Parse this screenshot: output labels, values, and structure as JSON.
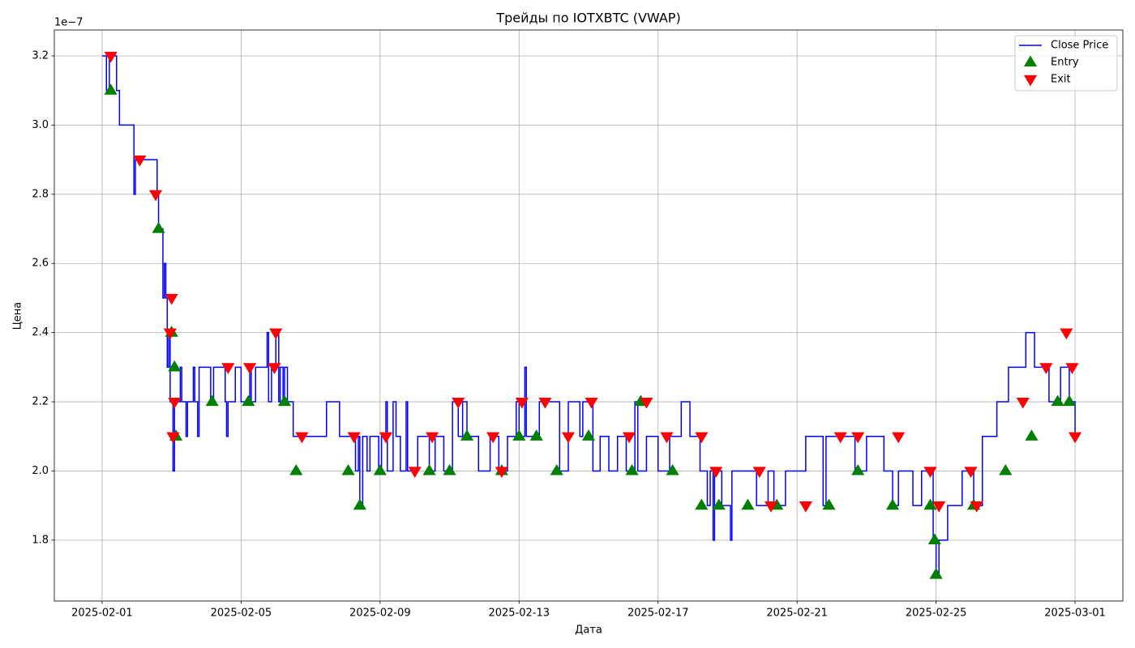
{
  "chart_data": {
    "type": "line",
    "title": "Трейды по IOTXBTC (VWAP)",
    "x_label": "Дата",
    "y_label": "Цена",
    "y_offset_text": "1e−7",
    "xlim": [
      "2025-01-30 15:00",
      "2025-03-02 09:00"
    ],
    "xticks": [
      "2025-02-01",
      "2025-02-05",
      "2025-02-09",
      "2025-02-13",
      "2025-02-17",
      "2025-02-21",
      "2025-02-25",
      "2025-03-01"
    ],
    "ylim": [
      1.624,
      3.275
    ],
    "yticks": [
      1.8,
      {
        "value": 2,
        "label": "2.0"
      },
      2.2,
      2.4,
      2.6,
      2.8,
      {
        "value": 3,
        "label": "3.0"
      },
      3.2
    ],
    "grid": true,
    "legend": "upper right",
    "series": [
      {
        "name": "Close Price",
        "marker": "step-line",
        "color": "#0000ff",
        "x": [
          "2025-02-01 00:00",
          "2025-02-01 03:00",
          "2025-02-01 05:00",
          "2025-02-01 10:00",
          "2025-02-01 12:00",
          "2025-02-01 22:00",
          "2025-02-01 23:00",
          "2025-02-02 14:00",
          "2025-02-02 15:00",
          "2025-02-02 18:00",
          "2025-02-02 19:00",
          "2025-02-02 20:00",
          "2025-02-02 21:00",
          "2025-02-02 22:00",
          "2025-02-02 23:00",
          "2025-02-03 01:00",
          "2025-02-03 02:00",
          "2025-02-03 06:00",
          "2025-02-03 07:00",
          "2025-02-03 10:00",
          "2025-02-03 11:00",
          "2025-02-03 15:00",
          "2025-02-03 16:00",
          "2025-02-03 18:00",
          "2025-02-03 19:00",
          "2025-02-04 03:00",
          "2025-02-04 05:00",
          "2025-02-04 13:00",
          "2025-02-04 14:00",
          "2025-02-04 15:00",
          "2025-02-04 20:00",
          "2025-02-05 00:00",
          "2025-02-05 06:00",
          "2025-02-05 07:00",
          "2025-02-05 10:00",
          "2025-02-05 18:00",
          "2025-02-05 19:00",
          "2025-02-05 21:00",
          "2025-02-06 00:00",
          "2025-02-06 02:00",
          "2025-02-06 03:00",
          "2025-02-06 05:00",
          "2025-02-06 06:00",
          "2025-02-06 08:00",
          "2025-02-06 12:00",
          "2025-02-07 11:00",
          "2025-02-07 20:00",
          "2025-02-08 07:00",
          "2025-02-08 09:00",
          "2025-02-08 10:00",
          "2025-02-08 12:00",
          "2025-02-08 15:00",
          "2025-02-08 17:00",
          "2025-02-08 23:00",
          "2025-02-09 01:00",
          "2025-02-09 04:00",
          "2025-02-09 05:00",
          "2025-02-09 09:00",
          "2025-02-09 11:00",
          "2025-02-09 14:00",
          "2025-02-09 18:00",
          "2025-02-09 19:00",
          "2025-02-10 02:00",
          "2025-02-10 10:00",
          "2025-02-10 14:00",
          "2025-02-10 20:00",
          "2025-02-11 02:00",
          "2025-02-11 06:00",
          "2025-02-11 09:00",
          "2025-02-11 12:00",
          "2025-02-11 20:00",
          "2025-02-12 04:00",
          "2025-02-12 10:00",
          "2025-02-12 16:00",
          "2025-02-12 22:00",
          "2025-02-13 00:00",
          "2025-02-13 04:00",
          "2025-02-13 05:00",
          "2025-02-13 14:00",
          "2025-02-14 04:00",
          "2025-02-14 10:00",
          "2025-02-14 18:00",
          "2025-02-14 20:00",
          "2025-02-15 03:00",
          "2025-02-15 08:00",
          "2025-02-15 14:00",
          "2025-02-15 20:00",
          "2025-02-16 02:00",
          "2025-02-16 08:00",
          "2025-02-16 10:00",
          "2025-02-16 16:00",
          "2025-02-17 00:00",
          "2025-02-17 08:00",
          "2025-02-17 16:00",
          "2025-02-17 22:00",
          "2025-02-18 05:00",
          "2025-02-18 10:00",
          "2025-02-18 12:00",
          "2025-02-18 14:00",
          "2025-02-18 15:00",
          "2025-02-18 20:00",
          "2025-02-19 02:00",
          "2025-02-19 03:00",
          "2025-02-19 20:00",
          "2025-02-20 04:00",
          "2025-02-20 08:00",
          "2025-02-20 16:00",
          "2025-02-21 06:00",
          "2025-02-21 18:00",
          "2025-02-21 20:00",
          "2025-02-22 16:00",
          "2025-02-23 00:00",
          "2025-02-23 12:00",
          "2025-02-23 18:00",
          "2025-02-23 22:00",
          "2025-02-24 08:00",
          "2025-02-24 14:00",
          "2025-02-24 22:00",
          "2025-02-25 00:00",
          "2025-02-25 02:00",
          "2025-02-25 08:00",
          "2025-02-25 18:00",
          "2025-02-26 02:00",
          "2025-02-26 08:00",
          "2025-02-26 18:00",
          "2025-02-27 02:00",
          "2025-02-27 14:00",
          "2025-02-27 20:00",
          "2025-02-28 06:00",
          "2025-02-28 14:00",
          "2025-02-28 20:00",
          "2025-03-01 00:00"
        ],
        "values": [
          3.2,
          3.1,
          3.2,
          3.1,
          3.0,
          2.8,
          2.9,
          2.8,
          2.7,
          2.5,
          2.6,
          2.5,
          2.3,
          2.4,
          2.2,
          2.0,
          2.2,
          2.3,
          2.2,
          2.1,
          2.2,
          2.3,
          2.2,
          2.1,
          2.3,
          2.2,
          2.3,
          2.2,
          2.1,
          2.2,
          2.3,
          2.2,
          2.3,
          2.2,
          2.3,
          2.4,
          2.2,
          2.3,
          2.4,
          2.2,
          2.3,
          2.2,
          2.3,
          2.2,
          2.1,
          2.2,
          2.1,
          2.0,
          2.1,
          1.9,
          2.1,
          2.0,
          2.1,
          2.0,
          2.1,
          2.2,
          2.0,
          2.2,
          2.1,
          2.0,
          2.2,
          2.0,
          2.1,
          2.0,
          2.1,
          2.0,
          2.2,
          2.1,
          2.2,
          2.1,
          2.0,
          2.1,
          2.0,
          2.1,
          2.2,
          2.1,
          2.3,
          2.1,
          2.2,
          2.0,
          2.2,
          2.1,
          2.2,
          2.0,
          2.1,
          2.0,
          2.1,
          2.0,
          2.2,
          2.0,
          2.1,
          2.0,
          2.1,
          2.2,
          2.1,
          2.0,
          1.9,
          2.0,
          1.8,
          2.0,
          1.9,
          1.8,
          2.0,
          1.9,
          2.0,
          1.9,
          2.0,
          2.1,
          1.9,
          2.1,
          2.0,
          2.1,
          2.0,
          1.9,
          2.0,
          1.9,
          2.0,
          1.8,
          1.7,
          1.8,
          1.9,
          2.0,
          1.9,
          2.1,
          2.2,
          2.3,
          2.4,
          2.3,
          2.2,
          2.3,
          2.2,
          2.1
        ]
      },
      {
        "name": "Entry",
        "marker": "triangle-up",
        "color": "#008000",
        "x": [
          "2025-02-01 06:00",
          "2025-02-02 15:00",
          "2025-02-03 00:00",
          "2025-02-03 02:00",
          "2025-02-03 03:00",
          "2025-02-04 04:00",
          "2025-02-05 05:00",
          "2025-02-06 06:00",
          "2025-02-06 14:00",
          "2025-02-08 02:00",
          "2025-02-08 10:00",
          "2025-02-09 00:00",
          "2025-02-10 10:00",
          "2025-02-11 00:00",
          "2025-02-11 12:00",
          "2025-02-12 12:00",
          "2025-02-13 00:00",
          "2025-02-13 12:00",
          "2025-02-14 02:00",
          "2025-02-15 00:00",
          "2025-02-16 06:00",
          "2025-02-16 12:00",
          "2025-02-17 10:00",
          "2025-02-18 06:00",
          "2025-02-18 18:00",
          "2025-02-19 14:00",
          "2025-02-20 10:00",
          "2025-02-21 22:00",
          "2025-02-22 18:00",
          "2025-02-23 18:00",
          "2025-02-24 20:00",
          "2025-02-24 23:00",
          "2025-02-25 00:00",
          "2025-02-26 02:00",
          "2025-02-27 00:00",
          "2025-02-27 18:00",
          "2025-02-28 12:00",
          "2025-02-28 20:00"
        ],
        "values": [
          3.1,
          2.7,
          2.4,
          2.3,
          2.1,
          2.2,
          2.2,
          2.2,
          2.0,
          2.0,
          1.9,
          2.0,
          2.0,
          2.0,
          2.1,
          2.0,
          2.1,
          2.1,
          2.0,
          2.1,
          2.0,
          2.2,
          2.0,
          1.9,
          1.9,
          1.9,
          1.9,
          1.9,
          2.0,
          1.9,
          1.9,
          1.8,
          1.7,
          1.9,
          2.0,
          2.1,
          2.2,
          2.2
        ]
      },
      {
        "name": "Exit",
        "marker": "triangle-down",
        "color": "#ff0000",
        "x": [
          "2025-02-01 06:00",
          "2025-02-02 02:00",
          "2025-02-02 13:00",
          "2025-02-03 00:00",
          "2025-02-02 23:00",
          "2025-02-03 02:00",
          "2025-02-03 01:00",
          "2025-02-04 15:00",
          "2025-02-05 06:00",
          "2025-02-06 00:00",
          "2025-02-05 23:00",
          "2025-02-06 18:00",
          "2025-02-08 06:00",
          "2025-02-09 04:00",
          "2025-02-10 00:00",
          "2025-02-10 12:00",
          "2025-02-11 06:00",
          "2025-02-12 06:00",
          "2025-02-12 12:00",
          "2025-02-13 02:00",
          "2025-02-13 18:00",
          "2025-02-14 10:00",
          "2025-02-15 02:00",
          "2025-02-16 04:00",
          "2025-02-16 16:00",
          "2025-02-17 06:00",
          "2025-02-18 06:00",
          "2025-02-18 16:00",
          "2025-02-19 22:00",
          "2025-02-20 06:00",
          "2025-02-21 06:00",
          "2025-02-22 06:00",
          "2025-02-22 18:00",
          "2025-02-23 22:00",
          "2025-02-24 20:00",
          "2025-02-25 02:00",
          "2025-02-26 00:00",
          "2025-02-26 04:00",
          "2025-02-27 12:00",
          "2025-02-28 04:00",
          "2025-02-28 18:00",
          "2025-02-28 22:00",
          "2025-03-01 00:00"
        ],
        "values": [
          3.2,
          2.9,
          2.8,
          2.5,
          2.4,
          2.2,
          2.1,
          2.3,
          2.3,
          2.4,
          2.3,
          2.1,
          2.1,
          2.1,
          2.0,
          2.1,
          2.2,
          2.1,
          2.0,
          2.2,
          2.2,
          2.1,
          2.2,
          2.1,
          2.2,
          2.1,
          2.1,
          2.0,
          2.0,
          1.9,
          1.9,
          2.1,
          2.1,
          2.1,
          2.0,
          1.9,
          2.0,
          1.9,
          2.2,
          2.3,
          2.4,
          2.3,
          2.1
        ]
      }
    ]
  }
}
